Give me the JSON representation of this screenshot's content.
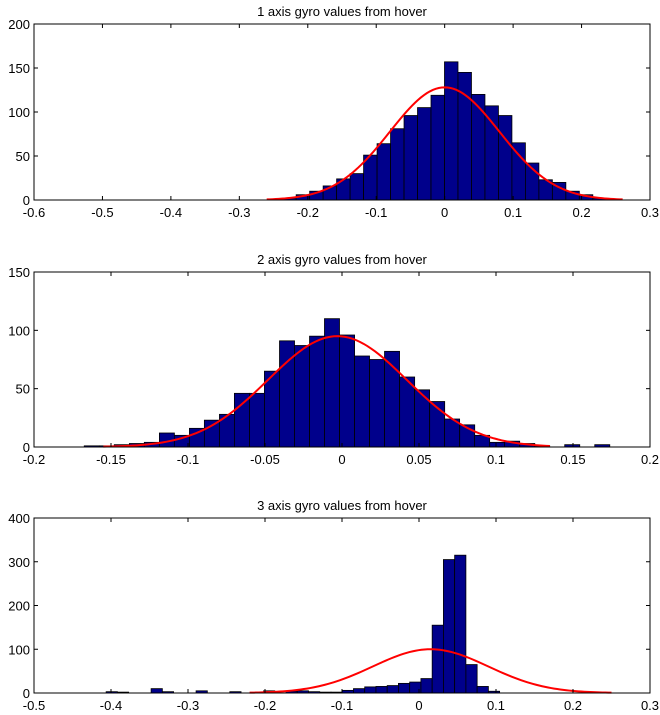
{
  "chart_data": [
    {
      "type": "bar",
      "title": "1 axis gyro values from hover",
      "xlim": [
        -0.6,
        0.3
      ],
      "ylim": [
        0,
        200
      ],
      "xticks": [
        "-0.6",
        "-0.5",
        "-0.4",
        "-0.3",
        "-0.2",
        "-0.1",
        "0",
        "0.1",
        "0.2",
        "0.3"
      ],
      "yticks": [
        "0",
        "50",
        "100",
        "150",
        "200"
      ],
      "bin_width": 0.0197,
      "bin_centers": [
        -0.2465,
        -0.2268,
        -0.2071,
        -0.1874,
        -0.1677,
        -0.148,
        -0.1283,
        -0.1086,
        -0.0889,
        -0.0692,
        -0.0495,
        -0.0298,
        -0.0101,
        0.0096,
        0.0293,
        0.049,
        0.0687,
        0.0884,
        0.1081,
        0.1278,
        0.1475,
        0.1672,
        0.1869,
        0.2066,
        0.2263,
        0.246
      ],
      "counts": [
        0,
        2,
        6,
        10,
        16,
        24,
        30,
        51,
        64,
        81,
        96,
        105,
        119,
        157,
        145,
        120,
        107,
        96,
        65,
        42,
        23,
        20,
        10,
        6,
        2,
        1
      ],
      "fit_curve": {
        "mean": 0.0,
        "std": 0.08,
        "peak": 128,
        "x_range": [
          -0.26,
          0.26
        ]
      },
      "colors": {
        "bar": "#00008b",
        "fit": "#ff0000"
      }
    },
    {
      "type": "bar",
      "title": "2 axis gyro values from hover",
      "xlim": [
        -0.2,
        0.2
      ],
      "ylim": [
        0,
        150
      ],
      "xticks": [
        "-0.2",
        "-0.15",
        "-0.1",
        "-0.05",
        "0",
        "0.05",
        "0.1",
        "0.15",
        "0.2"
      ],
      "yticks": [
        "0",
        "50",
        "100",
        "150"
      ],
      "bin_width": 0.00975,
      "bin_centers": [
        -0.1625,
        -0.1527,
        -0.143,
        -0.1332,
        -0.1235,
        -0.1137,
        -0.104,
        -0.0942,
        -0.0845,
        -0.0747,
        -0.065,
        -0.0552,
        -0.0455,
        -0.0357,
        -0.026,
        -0.0162,
        -0.0065,
        0.0033,
        0.013,
        0.0228,
        0.0325,
        0.0423,
        0.052,
        0.0618,
        0.0715,
        0.0813,
        0.091,
        0.1008,
        0.1105,
        0.1203,
        0.13,
        0.1398,
        0.1495,
        0.1593,
        0.169
      ],
      "counts": [
        1,
        1,
        2,
        3,
        4,
        12,
        10,
        16,
        23,
        28,
        46,
        46,
        65,
        91,
        87,
        95,
        110,
        96,
        78,
        75,
        82,
        60,
        49,
        39,
        24,
        19,
        10,
        4,
        5,
        3,
        1,
        0,
        2,
        0,
        2
      ],
      "fit_curve": {
        "mean": -0.003,
        "std": 0.045,
        "peak": 95,
        "x_range": [
          -0.155,
          0.135
        ]
      },
      "colors": {
        "bar": "#00008b",
        "fit": "#ff0000"
      }
    },
    {
      "type": "bar",
      "title": "3 axis gyro values from hover",
      "xlim": [
        -0.5,
        0.3
      ],
      "ylim": [
        0,
        400
      ],
      "xticks": [
        "-0.5",
        "-0.4",
        "-0.3",
        "-0.2",
        "-0.1",
        "0",
        "0.1",
        "0.2",
        "0.3"
      ],
      "yticks": [
        "0",
        "100",
        "200",
        "300",
        "400"
      ],
      "bin_width": 0.0146,
      "bin_centers": [
        -0.399,
        -0.3844,
        -0.3698,
        -0.3552,
        -0.3406,
        -0.326,
        -0.3114,
        -0.2968,
        -0.2822,
        -0.2676,
        -0.253,
        -0.2384,
        -0.2238,
        -0.2092,
        -0.1946,
        -0.18,
        -0.1654,
        -0.1508,
        -0.1362,
        -0.1216,
        -0.107,
        -0.0924,
        -0.0778,
        -0.0632,
        -0.0486,
        -0.034,
        -0.0194,
        -0.0048,
        0.0098,
        0.0244,
        0.039,
        0.0536,
        0.0682,
        0.0828,
        0.0974
      ],
      "counts": [
        3,
        2,
        0,
        0,
        10,
        3,
        0,
        0,
        5,
        0,
        0,
        3,
        0,
        0,
        5,
        0,
        4,
        5,
        3,
        2,
        2,
        6,
        10,
        14,
        15,
        17,
        22,
        25,
        33,
        155,
        305,
        315,
        65,
        15,
        4
      ],
      "fit_curve": {
        "mean": 0.015,
        "std": 0.075,
        "peak": 100,
        "x_range": [
          -0.22,
          0.25
        ]
      },
      "colors": {
        "bar": "#00008b",
        "fit": "#ff0000"
      }
    }
  ]
}
